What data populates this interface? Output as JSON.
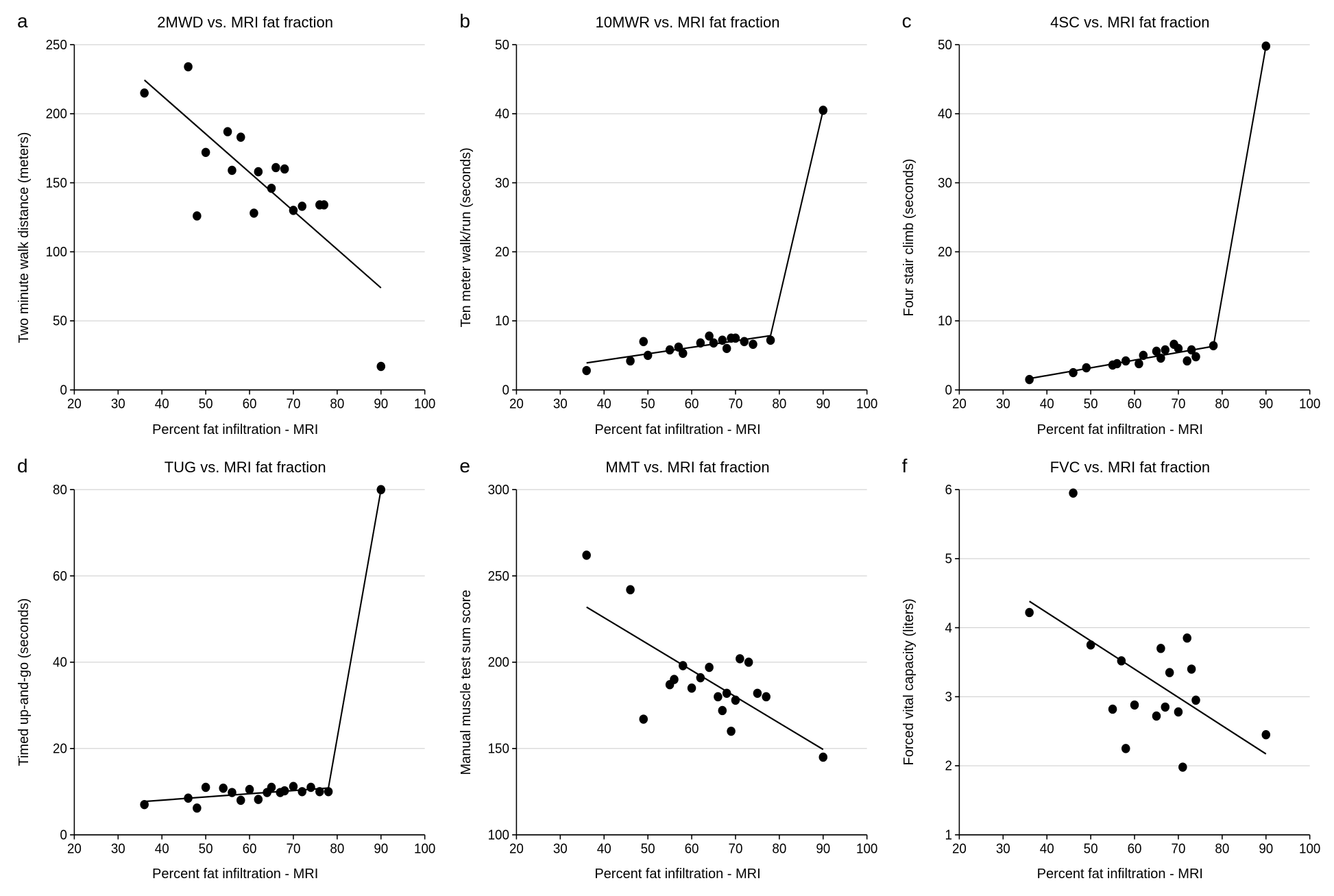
{
  "global": {
    "xlabel": "Percent fat infiltration - MRI",
    "xlim": [
      20,
      100
    ],
    "xticks": [
      20,
      30,
      40,
      50,
      60,
      70,
      80,
      90,
      100
    ],
    "background_color": "#ffffff",
    "grid_color": "#d0d0d0",
    "axis_color": "#000000",
    "point_color": "#000000",
    "point_radius": 6,
    "line_color": "#000000",
    "line_width": 2,
    "title_fontsize": 22,
    "label_fontsize": 20,
    "tick_fontsize": 18,
    "letter_fontsize": 28
  },
  "panels": [
    {
      "letter": "a",
      "title": "2MWD vs. MRI fat fraction",
      "ylabel": "Two minute walk distance (meters)",
      "ylim": [
        0,
        250
      ],
      "yticks": [
        0,
        50,
        100,
        150,
        200,
        250
      ],
      "fit": "linear",
      "fit_xrange": [
        36,
        90
      ],
      "points": [
        [
          36,
          215
        ],
        [
          46,
          234
        ],
        [
          48,
          126
        ],
        [
          50,
          172
        ],
        [
          55,
          187
        ],
        [
          56,
          159
        ],
        [
          58,
          183
        ],
        [
          61,
          128
        ],
        [
          62,
          158
        ],
        [
          65,
          146
        ],
        [
          66,
          161
        ],
        [
          68,
          160
        ],
        [
          70,
          130
        ],
        [
          72,
          133
        ],
        [
          76,
          134
        ],
        [
          77,
          134
        ],
        [
          90,
          17
        ]
      ]
    },
    {
      "letter": "b",
      "title": "10MWR vs. MRI fat fraction",
      "ylabel": "Ten meter walk/run (seconds)",
      "ylim": [
        0,
        50
      ],
      "yticks": [
        0,
        10,
        20,
        30,
        40,
        50
      ],
      "fit": "piecewise",
      "fit_xrange": [
        36,
        90
      ],
      "break_x": 78,
      "points": [
        [
          36,
          2.8
        ],
        [
          46,
          4.2
        ],
        [
          49,
          7.0
        ],
        [
          50,
          5.0
        ],
        [
          55,
          5.8
        ],
        [
          57,
          6.2
        ],
        [
          58,
          5.3
        ],
        [
          62,
          6.8
        ],
        [
          64,
          7.8
        ],
        [
          65,
          6.8
        ],
        [
          67,
          7.2
        ],
        [
          68,
          6.0
        ],
        [
          69,
          7.5
        ],
        [
          70,
          7.5
        ],
        [
          72,
          7.0
        ],
        [
          74,
          6.6
        ],
        [
          78,
          7.2
        ],
        [
          90,
          40.5
        ]
      ]
    },
    {
      "letter": "c",
      "title": "4SC vs. MRI fat fraction",
      "ylabel": "Four stair climb (seconds)",
      "ylim": [
        0,
        50
      ],
      "yticks": [
        0,
        10,
        20,
        30,
        40,
        50
      ],
      "fit": "piecewise",
      "fit_xrange": [
        36,
        90
      ],
      "break_x": 78,
      "points": [
        [
          36,
          1.5
        ],
        [
          46,
          2.5
        ],
        [
          49,
          3.2
        ],
        [
          55,
          3.6
        ],
        [
          56,
          3.8
        ],
        [
          58,
          4.2
        ],
        [
          61,
          3.8
        ],
        [
          62,
          5.0
        ],
        [
          65,
          5.6
        ],
        [
          66,
          4.6
        ],
        [
          67,
          5.8
        ],
        [
          69,
          6.6
        ],
        [
          70,
          6.0
        ],
        [
          72,
          4.2
        ],
        [
          73,
          5.8
        ],
        [
          74,
          4.8
        ],
        [
          78,
          6.4
        ],
        [
          90,
          49.8
        ]
      ]
    },
    {
      "letter": "d",
      "title": "TUG vs. MRI fat fraction",
      "ylabel": "Timed up-and-go (seconds)",
      "ylim": [
        0,
        80
      ],
      "yticks": [
        0,
        20,
        40,
        60,
        80
      ],
      "fit": "piecewise",
      "fit_xrange": [
        36,
        90
      ],
      "break_x": 78,
      "points": [
        [
          36,
          7.0
        ],
        [
          46,
          8.5
        ],
        [
          48,
          6.2
        ],
        [
          50,
          11.0
        ],
        [
          54,
          10.8
        ],
        [
          56,
          9.8
        ],
        [
          58,
          8.0
        ],
        [
          60,
          10.5
        ],
        [
          62,
          8.2
        ],
        [
          64,
          9.8
        ],
        [
          65,
          11.0
        ],
        [
          67,
          9.8
        ],
        [
          68,
          10.2
        ],
        [
          70,
          11.2
        ],
        [
          72,
          10.0
        ],
        [
          74,
          11.0
        ],
        [
          76,
          10.0
        ],
        [
          78,
          10.0
        ],
        [
          90,
          80.0
        ]
      ]
    },
    {
      "letter": "e",
      "title": "MMT vs. MRI fat fraction",
      "ylabel": "Manual muscle test sum score",
      "ylim": [
        100,
        300
      ],
      "yticks": [
        100,
        150,
        200,
        250,
        300
      ],
      "fit": "linear",
      "fit_xrange": [
        36,
        90
      ],
      "points": [
        [
          36,
          262
        ],
        [
          46,
          242
        ],
        [
          49,
          167
        ],
        [
          55,
          187
        ],
        [
          56,
          190
        ],
        [
          58,
          198
        ],
        [
          60,
          185
        ],
        [
          62,
          191
        ],
        [
          64,
          197
        ],
        [
          66,
          180
        ],
        [
          67,
          172
        ],
        [
          68,
          182
        ],
        [
          69,
          160
        ],
        [
          70,
          178
        ],
        [
          71,
          202
        ],
        [
          73,
          200
        ],
        [
          75,
          182
        ],
        [
          77,
          180
        ],
        [
          90,
          145
        ]
      ]
    },
    {
      "letter": "f",
      "title": "FVC vs. MRI fat fraction",
      "ylabel": "Forced vital capacity (liters)",
      "ylim": [
        1,
        6
      ],
      "yticks": [
        1,
        2,
        3,
        4,
        5,
        6
      ],
      "fit": "linear",
      "fit_xrange": [
        36,
        90
      ],
      "points": [
        [
          36,
          4.22
        ],
        [
          46,
          5.95
        ],
        [
          50,
          3.75
        ],
        [
          55,
          2.82
        ],
        [
          57,
          3.52
        ],
        [
          58,
          2.25
        ],
        [
          60,
          2.88
        ],
        [
          65,
          2.72
        ],
        [
          66,
          3.7
        ],
        [
          67,
          2.85
        ],
        [
          68,
          3.35
        ],
        [
          70,
          2.78
        ],
        [
          71,
          1.98
        ],
        [
          72,
          3.85
        ],
        [
          73,
          3.4
        ],
        [
          74,
          2.95
        ],
        [
          90,
          2.45
        ]
      ]
    }
  ]
}
